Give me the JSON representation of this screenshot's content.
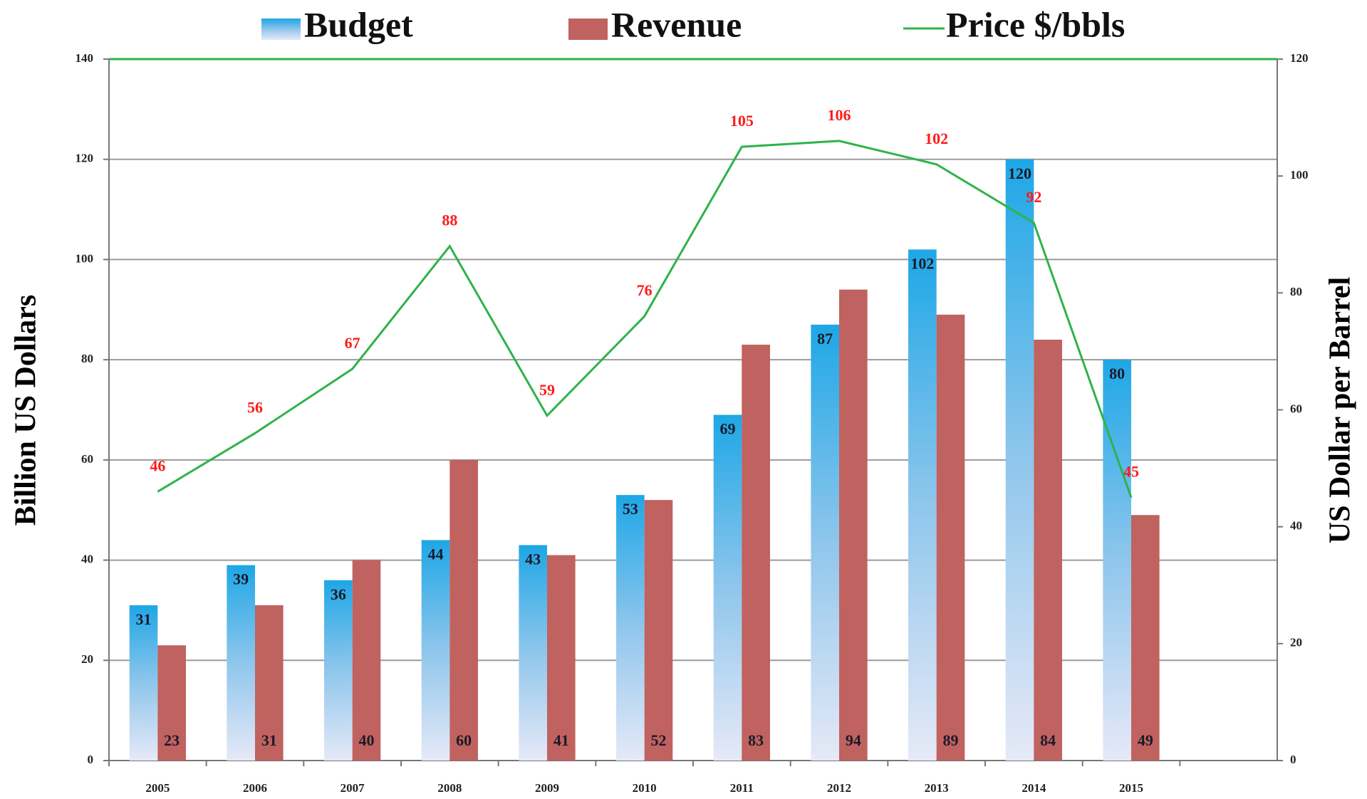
{
  "chart_data": {
    "type": "bar",
    "categories": [
      "2005",
      "2006",
      "2007",
      "2008",
      "2009",
      "2010",
      "2011",
      "2012",
      "2013",
      "2014",
      "2015",
      null
    ],
    "series": [
      {
        "name": "Budget",
        "color": "#1ea7e6",
        "values": [
          31,
          39,
          36,
          44,
          43,
          53,
          69,
          87,
          102,
          120,
          80,
          null
        ]
      },
      {
        "name": "Revenue",
        "color": "#c0625f",
        "values": [
          23,
          31,
          40,
          60,
          41,
          52,
          83,
          94,
          89,
          84,
          49,
          null
        ]
      },
      {
        "name": "Price $/bbls",
        "type": "line",
        "axis": "y2",
        "color": "#2eb34a",
        "values": [
          46,
          56,
          67,
          88,
          59,
          76,
          105,
          106,
          102,
          92,
          45,
          null
        ]
      }
    ],
    "ylabel": "Billion US Dollars",
    "y2label": "US Dollar per Barrel",
    "ylim": [
      0,
      140
    ],
    "yticks": [
      0,
      20,
      40,
      60,
      80,
      100,
      120,
      140
    ],
    "y2lim": [
      0,
      120
    ],
    "y2ticks": [
      0,
      20,
      40,
      60,
      80,
      100,
      120
    ],
    "grid": true,
    "legend": "top"
  }
}
